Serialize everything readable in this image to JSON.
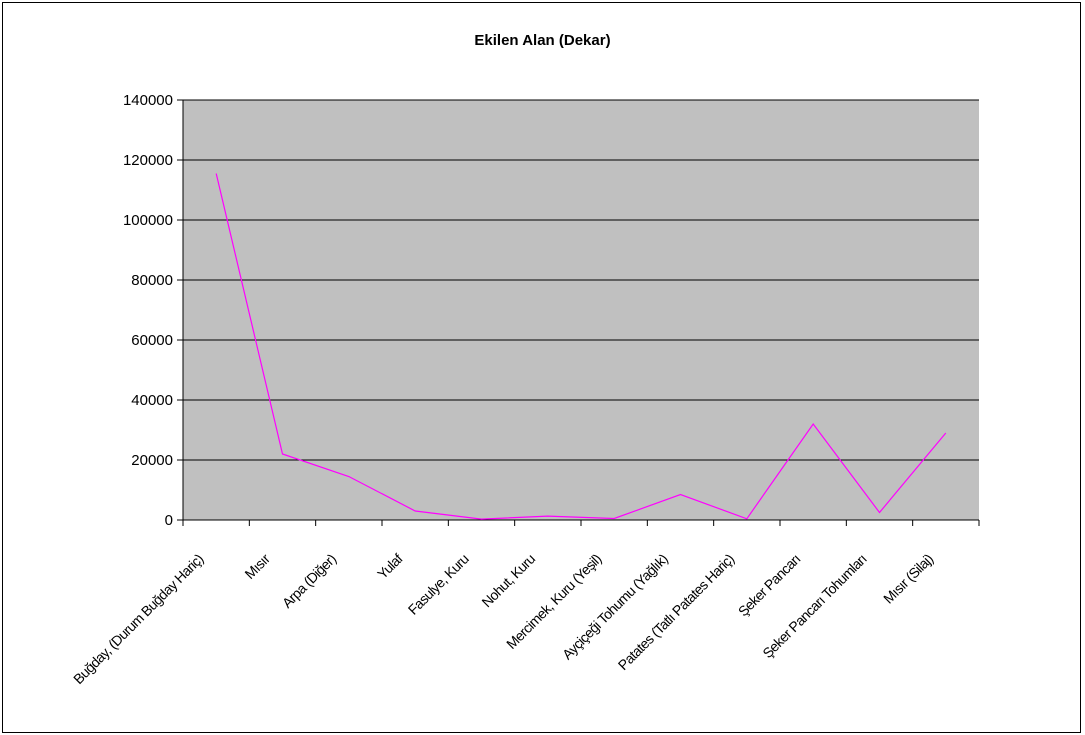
{
  "chart_data": {
    "type": "line",
    "title": "Ekilen Alan (Dekar)",
    "xlabel": "",
    "ylabel": "",
    "ylim": [
      0,
      140000
    ],
    "yticks": [
      0,
      20000,
      40000,
      60000,
      80000,
      100000,
      120000,
      140000
    ],
    "grid": true,
    "legend": "none",
    "categories": [
      "Buğday, (Durum Buğday Hariç)",
      "Mısır",
      "Arpa (Diğer)",
      "Yulaf",
      "Fasulye, Kuru",
      "Nohut, Kuru",
      "Mercimek, Kuru (Yeşil)",
      "Ayçiçeği Tohumu (Yağlık)",
      "Patates (Tatlı Patates Hariç)",
      "Şeker Pancarı",
      "Şeker Pancarı Tohumları",
      "Mısır (Silaj)"
    ],
    "series": [
      {
        "name": "",
        "values": [
          115500,
          22000,
          14500,
          3000,
          300,
          1300,
          500,
          8500,
          400,
          32000,
          2500,
          29000
        ]
      }
    ],
    "colors": {
      "plot_bg": "#c0c0c0",
      "line": "#ff00ff",
      "grid": "#000000"
    }
  }
}
